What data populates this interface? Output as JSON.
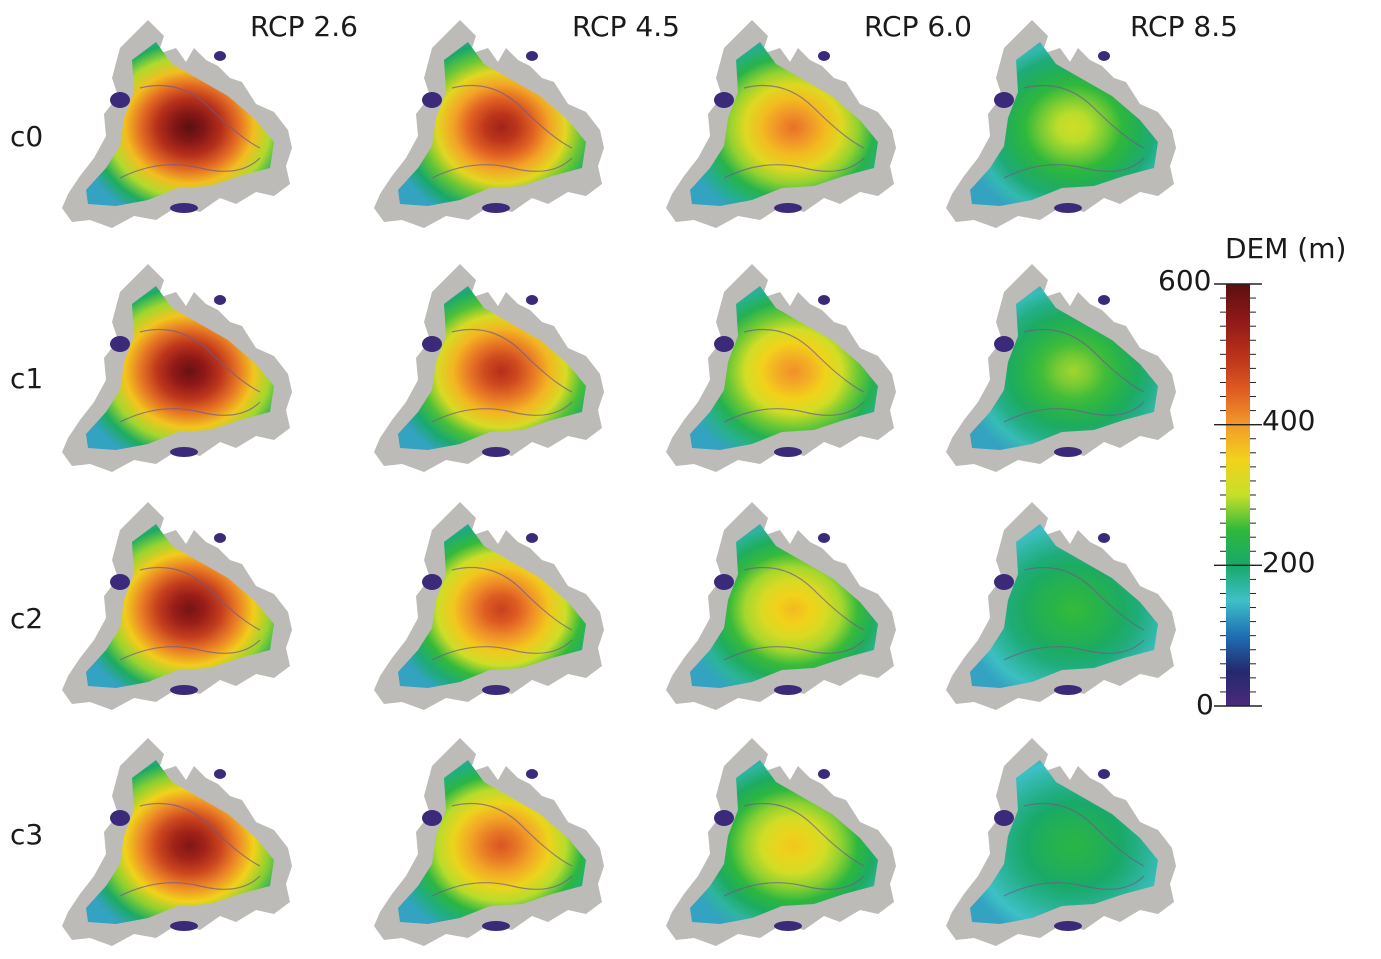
{
  "figure": {
    "column_labels": [
      "RCP 2.6",
      "RCP 4.5",
      "RCP 6.0",
      "RCP 8.5"
    ],
    "row_labels": [
      "c0",
      "c1",
      "c2",
      "c3"
    ],
    "intensity_grid": [
      [
        1.0,
        0.88,
        0.72,
        0.52
      ],
      [
        0.98,
        0.84,
        0.68,
        0.48
      ],
      [
        0.96,
        0.8,
        0.62,
        0.42
      ],
      [
        0.94,
        0.76,
        0.6,
        0.4
      ]
    ]
  },
  "colorbar": {
    "title": "DEM (m)",
    "min": 0,
    "max": 600,
    "ticks": [
      "600",
      "400",
      "200",
      "0"
    ],
    "tick_values": [
      600,
      400,
      200,
      0
    ],
    "stops": [
      "#4a2a7a",
      "#232a6e",
      "#1f6fb4",
      "#3fc0c8",
      "#18a86a",
      "#2fb83c",
      "#c6e02a",
      "#f2d21a",
      "#f39a2a",
      "#de5a22",
      "#b8301a",
      "#8e1818",
      "#5a1010"
    ]
  },
  "colors": {
    "land": "#bdbbb8",
    "lake": "#3b2a7a",
    "contour": "#6f5a8a"
  }
}
